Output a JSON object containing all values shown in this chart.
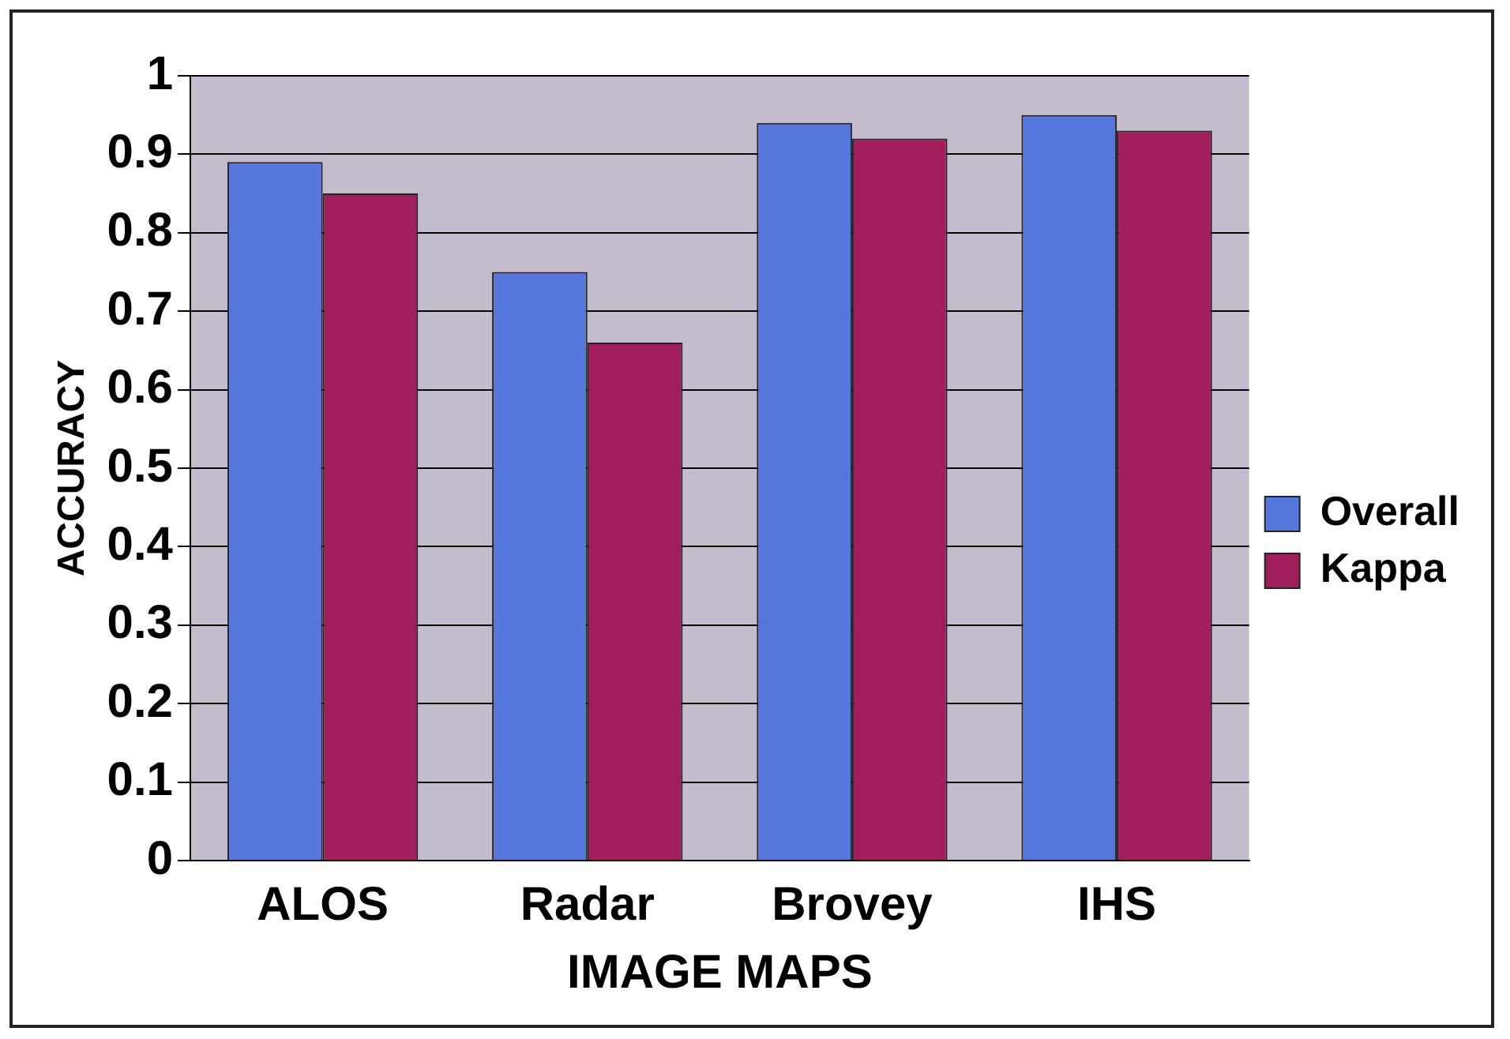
{
  "chart_data": {
    "type": "bar",
    "xlabel": "IMAGE MAPS",
    "ylabel": "ACCURACY",
    "categories": [
      "ALOS",
      "Radar",
      "Brovey",
      "IHS"
    ],
    "series": [
      {
        "name": "Overall",
        "color": "#5577dd",
        "values": [
          0.89,
          0.75,
          0.94,
          0.95
        ]
      },
      {
        "name": "Kappa",
        "color": "#a01e5c",
        "values": [
          0.85,
          0.66,
          0.92,
          0.93
        ]
      }
    ],
    "ylim": [
      0,
      1
    ],
    "yticks": [
      0,
      0.1,
      0.2,
      0.3,
      0.4,
      0.5,
      0.6,
      0.7,
      0.8,
      0.9,
      1
    ],
    "grid": "y",
    "legend": "right"
  }
}
